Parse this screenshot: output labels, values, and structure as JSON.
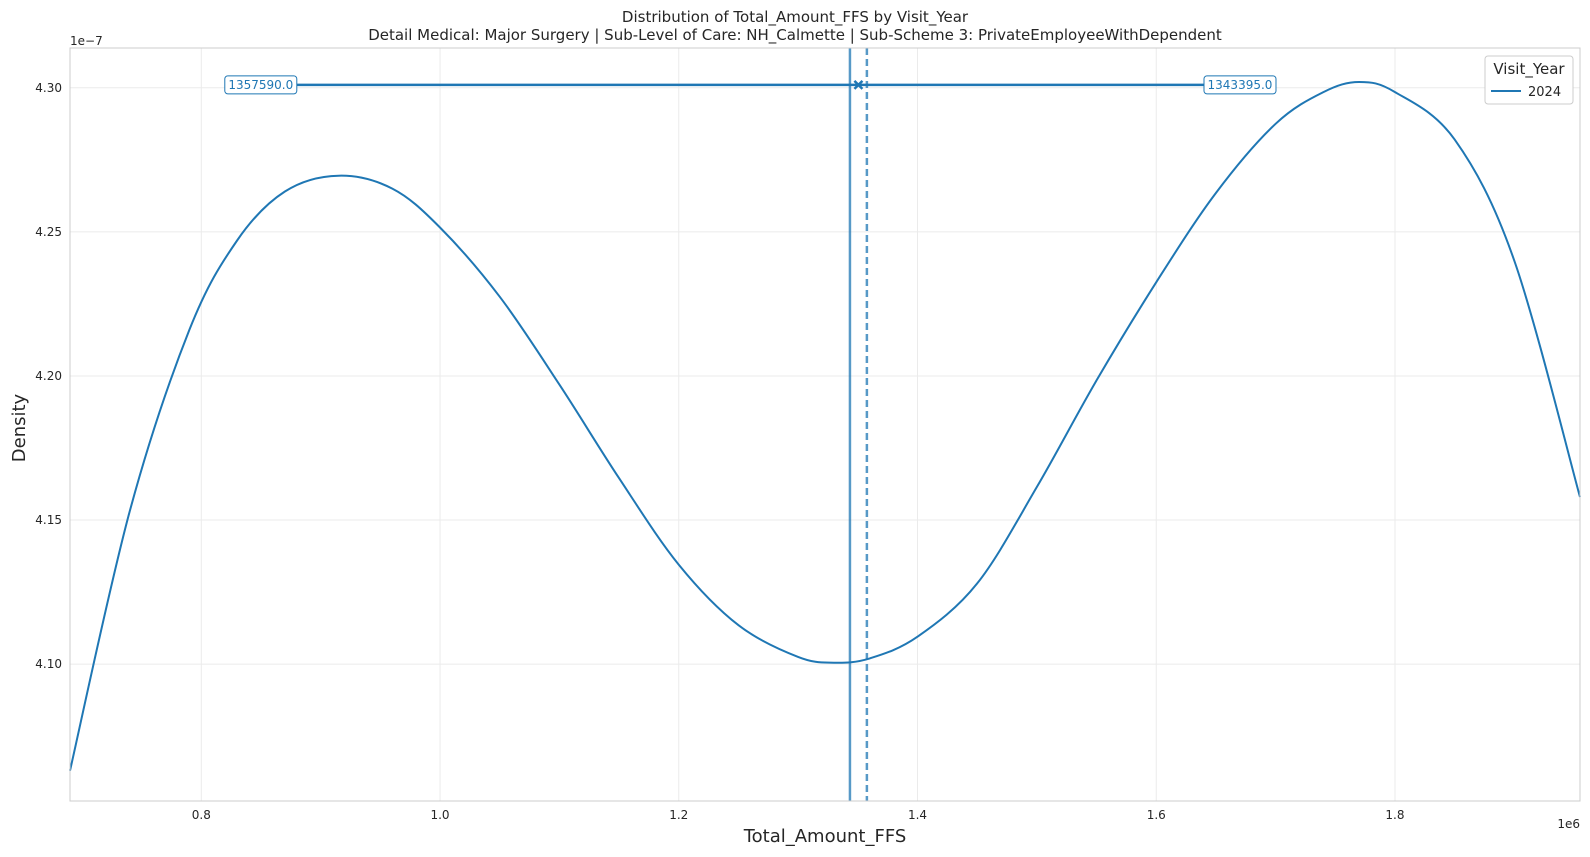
{
  "chart_data": {
    "type": "line",
    "title": "Distribution of Total_Amount_FFS by Visit_Year",
    "subtitle": "Detail Medical: Major Surgery | Sub-Level of Care: NH_Calmette | Sub-Scheme 3: PrivateEmployeeWithDependent",
    "xlabel": "Total_Amount_FFS",
    "ylabel": "Density",
    "x_scale_label": "1e6",
    "y_scale_label": "1e−7",
    "xlim": [
      690000,
      1955000
    ],
    "ylim": [
      4.0525e-07,
      4.3138e-07
    ],
    "x_ticks": [
      0.8,
      1.0,
      1.2,
      1.4,
      1.6,
      1.8
    ],
    "x_tick_labels": [
      "0.8",
      "1.0",
      "1.2",
      "1.4",
      "1.6",
      "1.8"
    ],
    "y_ticks": [
      4.1,
      4.15,
      4.2,
      4.25,
      4.3
    ],
    "y_tick_labels": [
      "4.10",
      "4.15",
      "4.20",
      "4.25",
      "4.30"
    ],
    "grid": true,
    "legend_title": "Visit_Year",
    "legend_placement": "top-right",
    "series": [
      {
        "name": "2024",
        "color": "#1f77b4",
        "x": [
          690000,
          740000,
          790000,
          830000,
          870000,
          915000,
          960000,
          1000000,
          1050000,
          1100000,
          1150000,
          1200000,
          1250000,
          1300000,
          1330000,
          1360000,
          1400000,
          1450000,
          1500000,
          1550000,
          1600000,
          1650000,
          1700000,
          1740000,
          1770000,
          1800000,
          1850000,
          1900000,
          1955000
        ],
        "y": [
          4.063e-07,
          4.153e-07,
          4.216e-07,
          4.247e-07,
          4.264e-07,
          4.2695e-07,
          4.265e-07,
          4.2515e-07,
          4.2275e-07,
          4.197e-07,
          4.1645e-07,
          4.1345e-07,
          4.1135e-07,
          4.1025e-07,
          4.1005e-07,
          4.102e-07,
          4.1095e-07,
          4.128e-07,
          4.1615e-07,
          4.1985e-07,
          4.2325e-07,
          4.2635e-07,
          4.2875e-07,
          4.2985e-07,
          4.302e-07,
          4.2985e-07,
          4.282e-07,
          4.24e-07,
          4.158e-07
        ]
      }
    ],
    "annotations": {
      "solid_vline_x": 1343395.0,
      "dashed_vline_x": 1357590.0,
      "range_line_y": 4.301e-07,
      "range_line_x": [
        880000,
        1640000
      ],
      "marker_x": 1350492.5,
      "left_box_text": "1357590.0",
      "right_box_text": "1343395.0"
    }
  }
}
